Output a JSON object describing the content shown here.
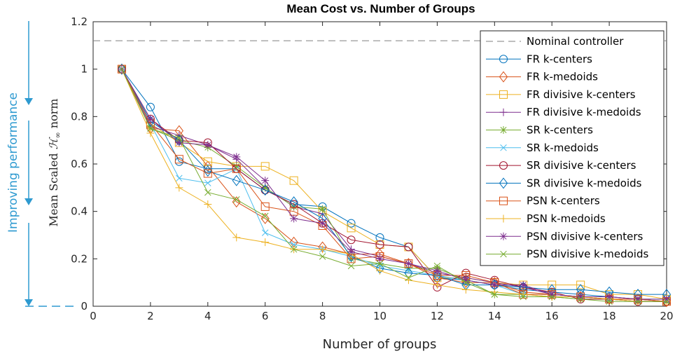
{
  "chart_data": {
    "type": "line",
    "title": "Mean Cost vs. Number of Groups",
    "xlabel": "Number of groups",
    "ylabel_prefix": "Mean Scaled ",
    "ylabel_symbol": "ℋ",
    "ylabel_sub": "∞",
    "ylabel_suffix": " norm",
    "side_annotation": "Improving performance",
    "xlim": [
      0,
      20
    ],
    "ylim": [
      0,
      1.2
    ],
    "xticks": [
      0,
      2,
      4,
      6,
      8,
      10,
      12,
      14,
      16,
      18,
      20
    ],
    "yticks": [
      0,
      0.2,
      0.4,
      0.6,
      0.8,
      1,
      1.2
    ],
    "ytick_labels": [
      "0",
      "0.2",
      "0.4",
      "0.6",
      "0.8",
      "1",
      "1.2"
    ],
    "grid": false,
    "legend_placement": "top-right",
    "reference_line": {
      "name": "Nominal controller",
      "y": 1.12,
      "color": "#7f7f7f"
    },
    "x": [
      1,
      2,
      3,
      4,
      5,
      6,
      7,
      8,
      9,
      10,
      11,
      12,
      13,
      14,
      15,
      16,
      17,
      18,
      19,
      20
    ],
    "series": [
      {
        "name": "FR k-centers",
        "marker": "circle",
        "color": "#0072BD",
        "values": [
          1,
          0.84,
          0.61,
          0.58,
          0.58,
          0.49,
          0.43,
          0.42,
          0.35,
          0.29,
          0.25,
          0.12,
          0.11,
          0.09,
          0.07,
          0.06,
          0.05,
          0.04,
          0.03,
          0.03
        ]
      },
      {
        "name": "FR k-medoids",
        "marker": "diamond",
        "color": "#D95319",
        "values": [
          1,
          0.75,
          0.74,
          0.59,
          0.44,
          0.37,
          0.27,
          0.25,
          0.22,
          0.22,
          0.18,
          0.12,
          0.1,
          0.1,
          0.06,
          0.05,
          0.04,
          0.03,
          0.03,
          0.02
        ]
      },
      {
        "name": "FR divisive k-centers",
        "marker": "square",
        "color": "#EDB120",
        "values": [
          1,
          0.77,
          0.69,
          0.61,
          0.59,
          0.59,
          0.53,
          0.4,
          0.33,
          0.26,
          0.25,
          0.12,
          0.12,
          0.1,
          0.09,
          0.09,
          0.09,
          0.05,
          0.05,
          0.03
        ]
      },
      {
        "name": "FR divisive k-medoids",
        "marker": "plus",
        "color": "#7E2F8E",
        "values": [
          1,
          0.76,
          0.72,
          0.68,
          0.62,
          0.5,
          0.42,
          0.39,
          0.24,
          0.21,
          0.18,
          0.14,
          0.12,
          0.1,
          0.08,
          0.05,
          0.04,
          0.04,
          0.03,
          0.02
        ]
      },
      {
        "name": "SR k-centers",
        "marker": "asterisk",
        "color": "#77AC30",
        "values": [
          1,
          0.75,
          0.7,
          0.67,
          0.59,
          0.5,
          0.42,
          0.41,
          0.2,
          0.18,
          0.16,
          0.16,
          0.11,
          0.05,
          0.05,
          0.04,
          0.03,
          0.03,
          0.02,
          0.02
        ]
      },
      {
        "name": "SR k-medoids",
        "marker": "x",
        "color": "#4DBEEE",
        "values": [
          1,
          0.77,
          0.54,
          0.52,
          0.58,
          0.31,
          0.26,
          0.24,
          0.21,
          0.17,
          0.15,
          0.13,
          0.11,
          0.09,
          0.05,
          0.05,
          0.04,
          0.03,
          0.02,
          0.02
        ]
      },
      {
        "name": "SR divisive k-centers",
        "marker": "circle",
        "color": "#A2142F",
        "values": [
          1,
          0.79,
          0.7,
          0.69,
          0.58,
          0.49,
          0.43,
          0.35,
          0.28,
          0.26,
          0.25,
          0.08,
          0.14,
          0.11,
          0.08,
          0.06,
          0.03,
          0.03,
          0.02,
          0.02
        ]
      },
      {
        "name": "SR divisive k-medoids",
        "marker": "diamond",
        "color": "#0072BD",
        "values": [
          1,
          0.78,
          0.7,
          0.57,
          0.53,
          0.49,
          0.44,
          0.37,
          0.21,
          0.16,
          0.14,
          0.13,
          0.09,
          0.09,
          0.08,
          0.07,
          0.07,
          0.06,
          0.05,
          0.05
        ]
      },
      {
        "name": "PSN k-centers",
        "marker": "square",
        "color": "#D95319",
        "values": [
          1,
          0.77,
          0.62,
          0.56,
          0.58,
          0.42,
          0.4,
          0.34,
          0.2,
          0.21,
          0.18,
          0.13,
          0.13,
          0.1,
          0.05,
          0.05,
          0.04,
          0.03,
          0.03,
          0.02
        ]
      },
      {
        "name": "PSN k-medoids",
        "marker": "plus",
        "color": "#EDB120",
        "values": [
          1,
          0.73,
          0.5,
          0.43,
          0.29,
          0.27,
          0.24,
          0.24,
          0.22,
          0.15,
          0.11,
          0.09,
          0.07,
          0.06,
          0.05,
          0.04,
          0.04,
          0.03,
          0.02,
          0.02
        ]
      },
      {
        "name": "PSN divisive k-centers",
        "marker": "asterisk",
        "color": "#7E2F8E",
        "values": [
          1,
          0.79,
          0.69,
          0.68,
          0.63,
          0.53,
          0.37,
          0.35,
          0.23,
          0.2,
          0.18,
          0.15,
          0.11,
          0.09,
          0.09,
          0.05,
          0.04,
          0.04,
          0.03,
          0.03
        ]
      },
      {
        "name": "PSN divisive k-medoids",
        "marker": "x",
        "color": "#77AC30",
        "values": [
          1,
          0.75,
          0.71,
          0.48,
          0.45,
          0.38,
          0.24,
          0.21,
          0.17,
          0.18,
          0.12,
          0.17,
          0.1,
          0.05,
          0.04,
          0.04,
          0.03,
          0.02,
          0.02,
          0.02
        ]
      }
    ]
  },
  "colors": {
    "axis": "#262626",
    "annotation": "#2E9AD0",
    "reference_line": "#7f7f7f"
  }
}
